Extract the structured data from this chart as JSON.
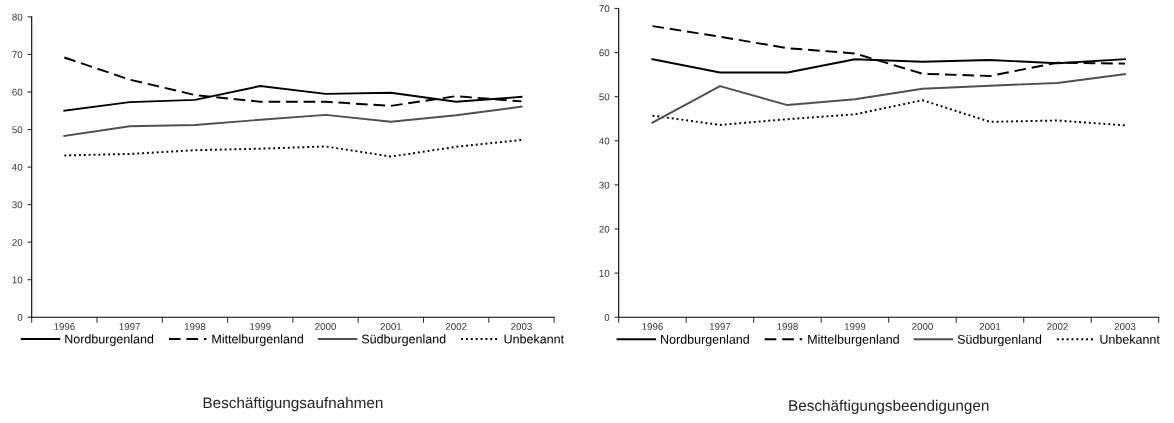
{
  "chart_data": [
    {
      "type": "line",
      "title": "Beschäftigungsaufnahmen",
      "categories": [
        "1996",
        "1997",
        "1998",
        "1999",
        "2000",
        "2001",
        "2002",
        "2003"
      ],
      "ylim": [
        0,
        80
      ],
      "yticks": [
        0,
        10,
        20,
        30,
        40,
        50,
        60,
        70,
        80
      ],
      "grid": false,
      "legend": "bottom",
      "marker": "none",
      "series": [
        {
          "name": "Nordburgenland",
          "color": "#000000",
          "line_style": "solid",
          "values": [
            55.0,
            57.3,
            57.9,
            61.6,
            59.5,
            59.8,
            57.4,
            58.7
          ]
        },
        {
          "name": "Mittelburgenland",
          "color": "#000000",
          "line_style": "dashed",
          "values": [
            69.2,
            63.3,
            59.2,
            57.4,
            57.4,
            56.3,
            58.9,
            57.5
          ]
        },
        {
          "name": "Südburgenland",
          "color": "#505050",
          "line_style": "solid",
          "values": [
            48.3,
            50.9,
            51.2,
            52.6,
            53.9,
            52.1,
            53.8,
            56.1
          ]
        },
        {
          "name": "Unbekannt",
          "color": "#000000",
          "line_style": "dotted",
          "values": [
            43.1,
            43.5,
            44.5,
            44.9,
            45.5,
            42.8,
            45.4,
            47.2
          ]
        }
      ]
    },
    {
      "type": "line",
      "title": "Beschäftigungsbeendigungen",
      "categories": [
        "1996",
        "1997",
        "1998",
        "1999",
        "2000",
        "2001",
        "2002",
        "2003"
      ],
      "ylim": [
        0,
        70
      ],
      "yticks": [
        0,
        10,
        20,
        30,
        40,
        50,
        60,
        70
      ],
      "grid": false,
      "legend": "bottom",
      "marker": "none",
      "series": [
        {
          "name": "Nordburgenland",
          "color": "#000000",
          "line_style": "solid",
          "values": [
            58.5,
            55.5,
            55.5,
            58.5,
            57.9,
            58.3,
            57.6,
            58.5
          ]
        },
        {
          "name": "Mittelburgenland",
          "color": "#000000",
          "line_style": "dashed",
          "values": [
            66.0,
            63.6,
            61.0,
            59.8,
            55.2,
            54.7,
            57.7,
            57.5
          ]
        },
        {
          "name": "Südburgenland",
          "color": "#505050",
          "line_style": "solid",
          "values": [
            44.1,
            52.4,
            48.1,
            49.4,
            51.8,
            52.5,
            53.1,
            55.1
          ]
        },
        {
          "name": "Unbekannt",
          "color": "#000000",
          "line_style": "dotted",
          "values": [
            45.7,
            43.6,
            44.9,
            46.0,
            49.2,
            44.3,
            44.6,
            43.5
          ]
        }
      ]
    }
  ]
}
